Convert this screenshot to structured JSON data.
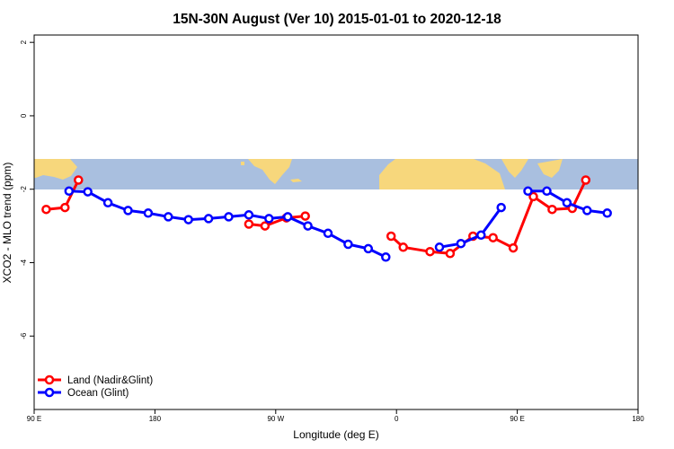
{
  "chart_data": {
    "type": "line",
    "title": "15N-30N August (Ver 10)   2015-01-01 to 2020-12-18",
    "xlabel": "Longitude (deg E)",
    "ylabel": "XCO2 - MLO trend (ppm)",
    "x_axis": {
      "min": 90,
      "max": 540,
      "ticks": [
        90,
        180,
        270,
        360,
        450,
        540
      ],
      "tick_labels": [
        "90 E",
        "180",
        "90 W",
        "0",
        "90 E",
        "180"
      ]
    },
    "y_axis": {
      "min": -8,
      "max": 2.2,
      "ticks": [
        2,
        0,
        -2,
        -4,
        -6
      ],
      "tick_labels": [
        "2",
        "0",
        "-2",
        "-4",
        "-6"
      ]
    },
    "map_strip": {
      "y_top": -1.05,
      "y_bottom": -1.9,
      "ocean_color": "#a9bfdf",
      "land_color": "#f7d77c"
    },
    "legend": {
      "position": "bottom-left"
    },
    "series": [
      {
        "name": "Land (Nadir&Glint)",
        "color": "#ff0000",
        "segments": [
          [
            [
              99,
              -2.55
            ],
            [
              113,
              -2.5
            ],
            [
              123,
              -1.75
            ]
          ],
          [
            [
              250,
              -2.95
            ],
            [
              262,
              -3.0
            ],
            [
              278,
              -2.78
            ],
            [
              292,
              -2.73
            ]
          ],
          [
            [
              356,
              -3.28
            ],
            [
              365,
              -3.58
            ],
            [
              385,
              -3.7
            ],
            [
              400,
              -3.75
            ],
            [
              417,
              -3.28
            ],
            [
              432,
              -3.32
            ],
            [
              447,
              -3.6
            ],
            [
              462,
              -2.2
            ],
            [
              476,
              -2.55
            ],
            [
              491,
              -2.52
            ],
            [
              501,
              -1.75
            ]
          ]
        ]
      },
      {
        "name": "Ocean (Glint)",
        "color": "#0000ff",
        "segments": [
          [
            [
              116,
              -2.05
            ],
            [
              130,
              -2.07
            ],
            [
              145,
              -2.37
            ],
            [
              160,
              -2.58
            ],
            [
              175,
              -2.65
            ],
            [
              190,
              -2.75
            ],
            [
              205,
              -2.83
            ],
            [
              220,
              -2.8
            ],
            [
              235,
              -2.75
            ],
            [
              250,
              -2.7
            ],
            [
              265,
              -2.8
            ],
            [
              279,
              -2.75
            ],
            [
              294,
              -3.0
            ],
            [
              309,
              -3.2
            ],
            [
              324,
              -3.5
            ],
            [
              339,
              -3.62
            ],
            [
              352,
              -3.85
            ]
          ],
          [
            [
              392,
              -3.58
            ],
            [
              408,
              -3.48
            ],
            [
              423,
              -3.25
            ],
            [
              438,
              -2.5
            ]
          ],
          [
            [
              458,
              -2.05
            ],
            [
              472,
              -2.05
            ],
            [
              487,
              -2.37
            ],
            [
              502,
              -2.58
            ],
            [
              517,
              -2.65
            ]
          ]
        ]
      }
    ]
  }
}
